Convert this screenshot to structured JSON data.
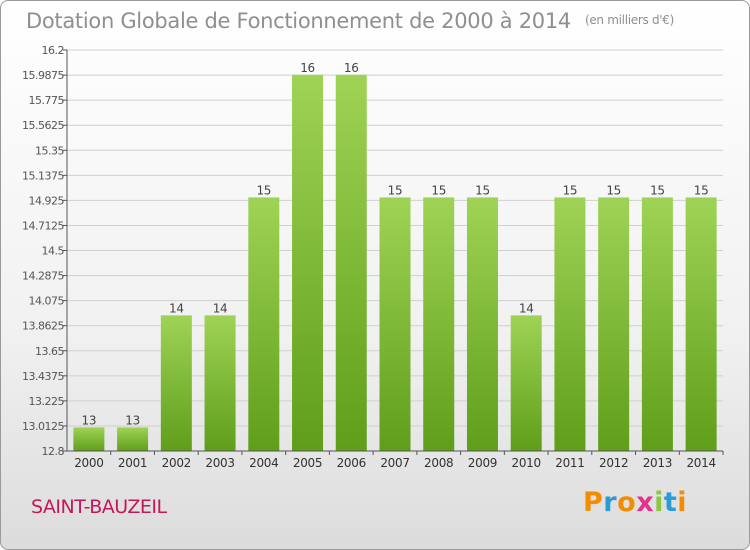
{
  "title": "Dotation Globale de Fonctionnement de 2000 à 2014",
  "unit": "(en milliers d'€)",
  "commune": "SAINT-BAUZEIL",
  "logo": {
    "text": "Proxiti",
    "letter_colors": [
      "#f28c00",
      "#2b9bd6",
      "#f28c00",
      "#e2328c",
      "#8dc63f",
      "#2b9bd6",
      "#f28c00"
    ]
  },
  "colors": {
    "bar_top": "#9fd356",
    "bar_bottom": "#5f9e1a",
    "grid": "#d0d0d0",
    "axis": "#555555"
  },
  "chart_data": {
    "type": "bar",
    "categories": [
      "2000",
      "2001",
      "2002",
      "2003",
      "2004",
      "2005",
      "2006",
      "2007",
      "2008",
      "2009",
      "2010",
      "2011",
      "2012",
      "2013",
      "2014"
    ],
    "values": [
      13,
      13,
      14,
      14,
      15,
      16,
      16,
      15,
      15,
      15,
      14,
      15,
      15,
      15,
      15
    ],
    "data_labels": [
      "13",
      "13",
      "14",
      "14",
      "15",
      "16",
      "16",
      "15",
      "15",
      "15",
      "14",
      "15",
      "15",
      "15",
      "15"
    ],
    "plotted_values": [
      13.0,
      13.0,
      13.95,
      13.95,
      14.95,
      15.99,
      15.99,
      14.95,
      14.95,
      14.95,
      13.95,
      14.95,
      14.95,
      14.95,
      14.95
    ],
    "ylim": [
      12.8,
      16.2
    ],
    "yticks": [
      12.8,
      13.0125,
      13.225,
      13.4375,
      13.65,
      13.8625,
      14.075,
      14.2875,
      14.5,
      14.7125,
      14.925,
      15.1375,
      15.35,
      15.5625,
      15.775,
      15.9875,
      16.2
    ],
    "ytick_labels": [
      "12.8",
      "13.0125",
      "13.225",
      "13.4375",
      "13.65",
      "13.8625",
      "14.075",
      "14.2875",
      "14.5",
      "14.7125",
      "14.925",
      "15.1375",
      "15.35",
      "15.5625",
      "15.775",
      "15.9875",
      "16.2"
    ],
    "title": "Dotation Globale de Fonctionnement de 2000 à 2014",
    "xlabel": "",
    "ylabel": "",
    "grid": true,
    "legend": "none"
  }
}
